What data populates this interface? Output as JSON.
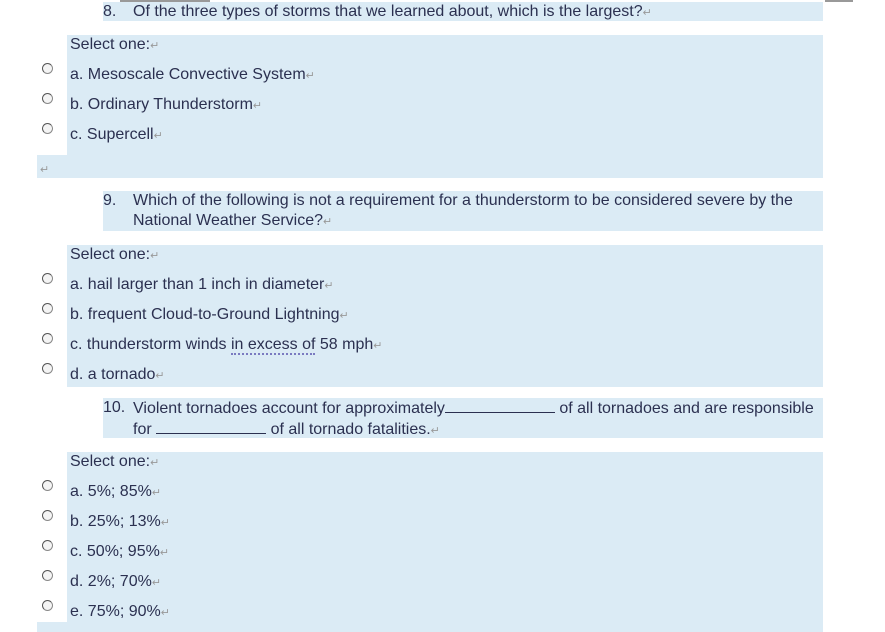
{
  "paragraph_mark": "↵",
  "questions": [
    {
      "number": "8.",
      "text": "Of the three types of storms that we learned about, which is the largest?",
      "prompt": "Select one:",
      "options": [
        "a. Mesoscale Convective System",
        "b. Ordinary Thunderstorm",
        "c. Supercell"
      ]
    },
    {
      "number": "9.",
      "text": "Which of the following is not a requirement for a thunderstorm to be considered severe by the National Weather Service?",
      "prompt": "Select one:",
      "options": [
        "a. hail larger than 1 inch in diameter",
        "b. frequent Cloud-to-Ground Lightning",
        "c. thunderstorm winds",
        "d. a tornado"
      ],
      "option_c_underlined": "in excess of",
      "option_c_end": "58 mph"
    },
    {
      "number": "10.",
      "text_part1": "Violent tornadoes account for approximately",
      "text_part2": "of all tornadoes and are responsible for",
      "text_part3": "of all tornado fatalities.",
      "prompt": "Select one:",
      "options": [
        "a. 5%; 85%",
        "b. 25%; 13%",
        "c. 50%; 95%",
        "d. 2%; 70%",
        "e. 75%; 90%"
      ]
    }
  ]
}
